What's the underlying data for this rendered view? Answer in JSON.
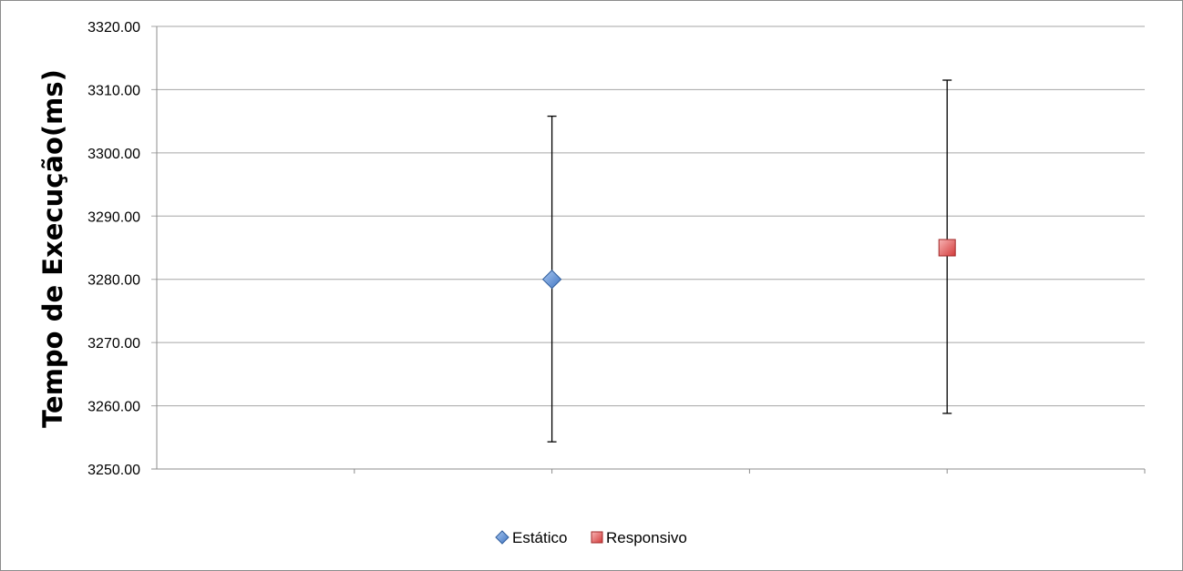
{
  "chart_data": {
    "type": "scatter",
    "title": "",
    "xlabel": "",
    "ylabel": "Tempo de Execução(ms)",
    "ylim": [
      3250,
      3320
    ],
    "yticks": [
      "3250.00",
      "3260.00",
      "3270.00",
      "3280.00",
      "3290.00",
      "3300.00",
      "3310.00",
      "3320.00"
    ],
    "x_categories": 5,
    "grid": "horizontal",
    "legend_position": "bottom",
    "series": [
      {
        "name": "Estático",
        "x": 3,
        "y": 3280.0,
        "error_low": 3254.3,
        "error_high": 3305.8,
        "marker": "diamond",
        "color": "#4f81bd"
      },
      {
        "name": "Responsivo",
        "x": 5,
        "y": 3285.0,
        "error_low": 3258.8,
        "error_high": 3311.5,
        "marker": "square",
        "color": "#e05252"
      }
    ]
  }
}
